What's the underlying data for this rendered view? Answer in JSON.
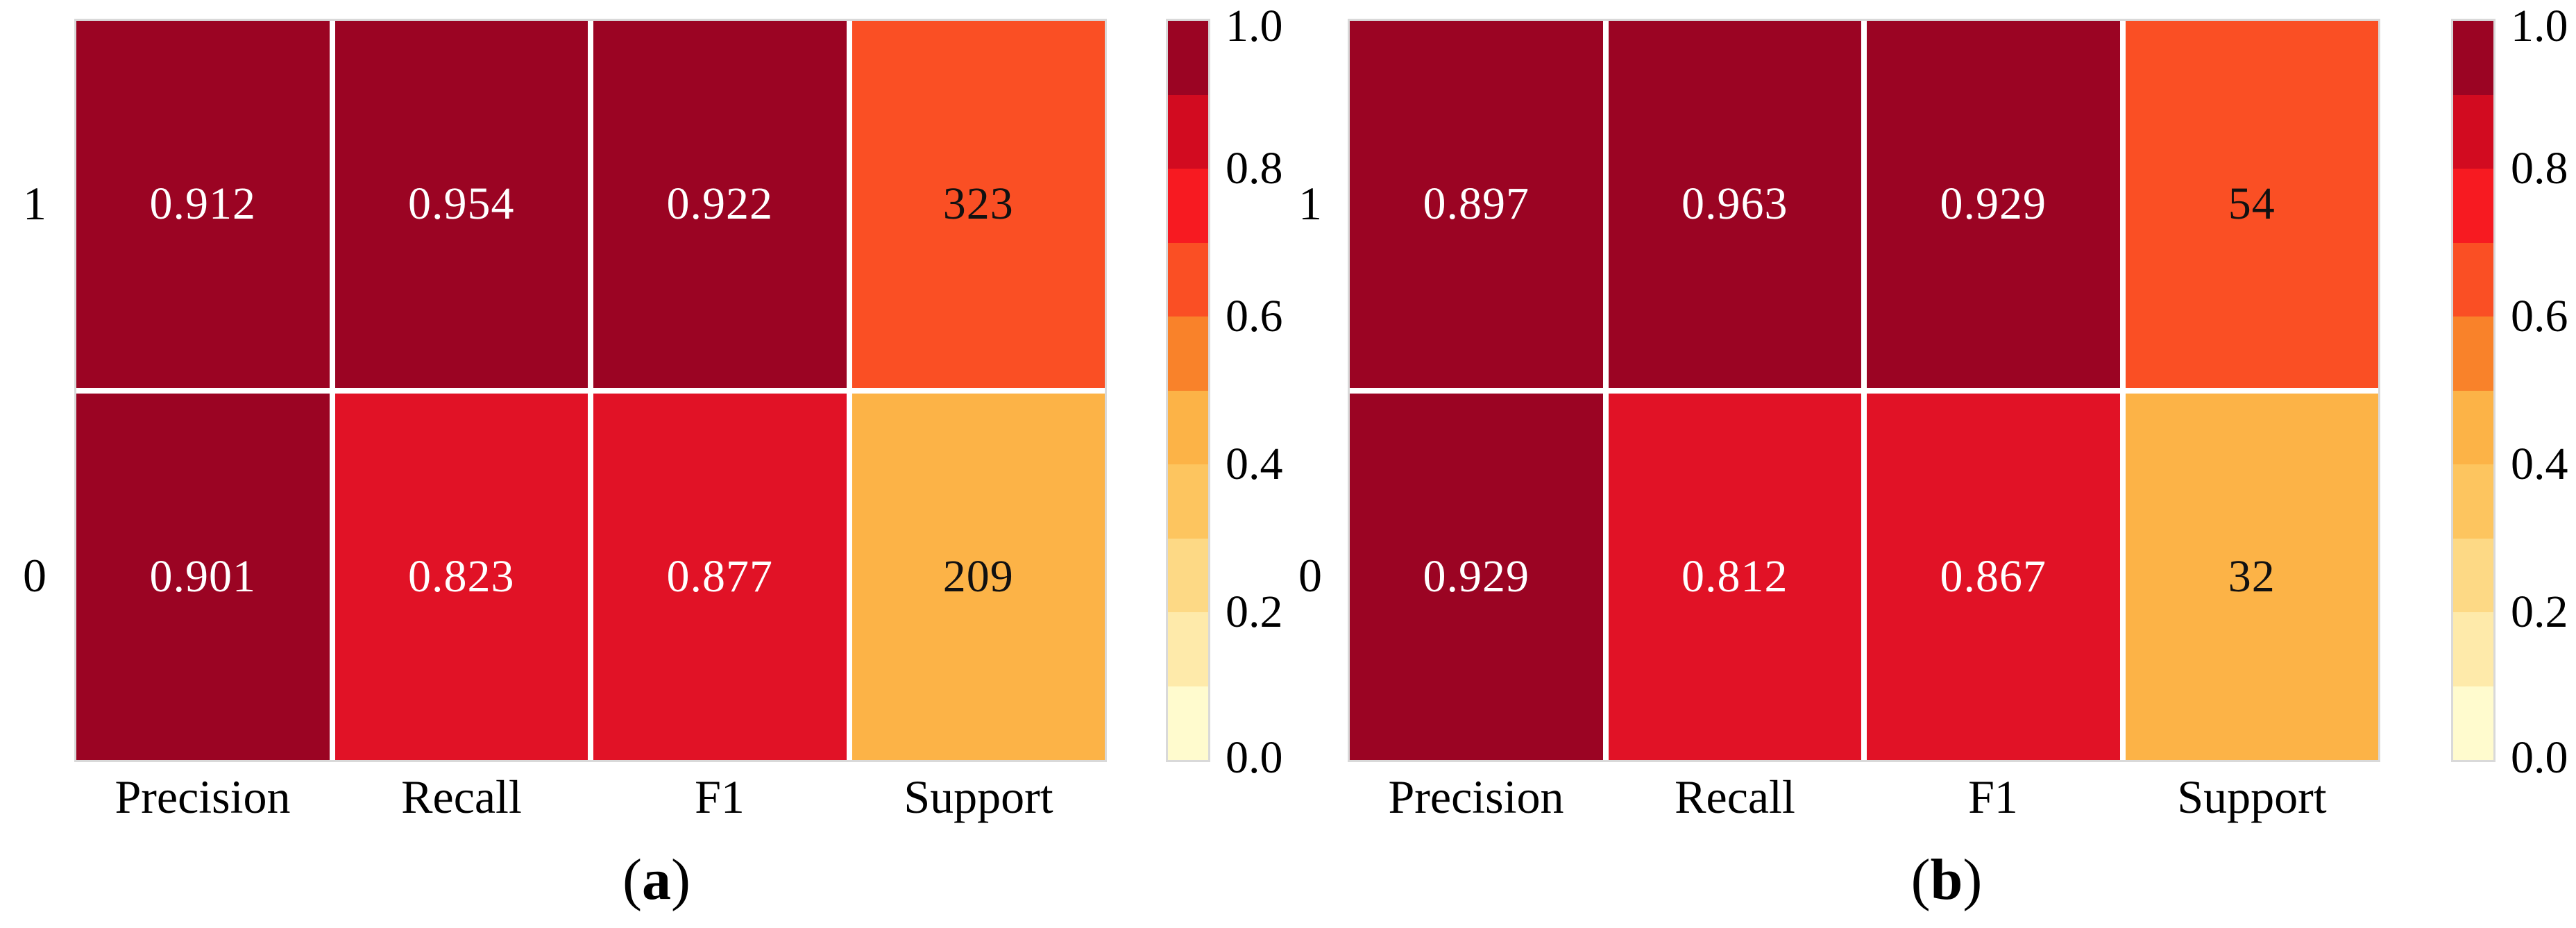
{
  "chart_data": [
    {
      "type": "heatmap",
      "caption": "(a)",
      "rows": [
        "1",
        "0"
      ],
      "columns": [
        "Precision",
        "Recall",
        "F1",
        "Support"
      ],
      "values": [
        [
          0.912,
          0.954,
          0.922,
          323
        ],
        [
          0.901,
          0.823,
          0.877,
          209
        ]
      ],
      "colormap": "YlOrRd",
      "value_range": [
        0,
        1
      ],
      "colorbar_ticks": [
        "1.0",
        "0.8",
        "0.6",
        "0.4",
        "0.2",
        "0.0"
      ],
      "colorbar_bands": 10,
      "grid": "white cell separators",
      "legend_position": "right colorbar"
    },
    {
      "type": "heatmap",
      "caption": "(b)",
      "rows": [
        "1",
        "0"
      ],
      "columns": [
        "Precision",
        "Recall",
        "F1",
        "Support"
      ],
      "values": [
        [
          0.897,
          0.963,
          0.929,
          54
        ],
        [
          0.929,
          0.812,
          0.867,
          32
        ]
      ],
      "colormap": "YlOrRd",
      "value_range": [
        0,
        1
      ],
      "colorbar_ticks": [
        "1.0",
        "0.8",
        "0.6",
        "0.4",
        "0.2",
        "0.0"
      ],
      "colorbar_bands": 10,
      "grid": "white cell separators",
      "legend_position": "right colorbar"
    }
  ],
  "panels": [
    {
      "caption_open": "(",
      "caption_letter": "a",
      "caption_close": ")",
      "row_labels": [
        "1",
        "0"
      ],
      "col_labels": [
        "Precision",
        "Recall",
        "F1",
        "Support"
      ],
      "cells": [
        {
          "label": "0.912",
          "bg": "#9b0423",
          "fg": "#ffffff"
        },
        {
          "label": "0.954",
          "bg": "#9b0423",
          "fg": "#ffffff"
        },
        {
          "label": "0.922",
          "bg": "#9b0423",
          "fg": "#ffffff"
        },
        {
          "label": "323",
          "bg": "#fa4f24",
          "fg": "#111111"
        },
        {
          "label": "0.901",
          "bg": "#9b0423",
          "fg": "#ffffff"
        },
        {
          "label": "0.823",
          "bg": "#e11226",
          "fg": "#ffffff"
        },
        {
          "label": "0.877",
          "bg": "#e11226",
          "fg": "#ffffff"
        },
        {
          "label": "209",
          "bg": "#fcb347",
          "fg": "#111111"
        }
      ]
    },
    {
      "caption_open": "(",
      "caption_letter": "b",
      "caption_close": ")",
      "row_labels": [
        "1",
        "0"
      ],
      "col_labels": [
        "Precision",
        "Recall",
        "F1",
        "Support"
      ],
      "cells": [
        {
          "label": "0.897",
          "bg": "#9b0423",
          "fg": "#ffffff"
        },
        {
          "label": "0.963",
          "bg": "#9b0423",
          "fg": "#ffffff"
        },
        {
          "label": "0.929",
          "bg": "#9b0423",
          "fg": "#ffffff"
        },
        {
          "label": "54",
          "bg": "#fa4f24",
          "fg": "#111111"
        },
        {
          "label": "0.929",
          "bg": "#9b0423",
          "fg": "#ffffff"
        },
        {
          "label": "0.812",
          "bg": "#e11226",
          "fg": "#ffffff"
        },
        {
          "label": "0.867",
          "bg": "#e11226",
          "fg": "#ffffff"
        },
        {
          "label": "32",
          "bg": "#fcb347",
          "fg": "#111111"
        }
      ]
    }
  ],
  "colorbar": {
    "tick_labels": [
      "1.0",
      "0.8",
      "0.6",
      "0.4",
      "0.2",
      "0.0"
    ],
    "band_colors": [
      "#9b0423",
      "#d20b20",
      "#f71a21",
      "#fa4f24",
      "#f9822a",
      "#fcb347",
      "#fdc55f",
      "#fdd985",
      "#feeaaa",
      "#fffbce"
    ]
  }
}
